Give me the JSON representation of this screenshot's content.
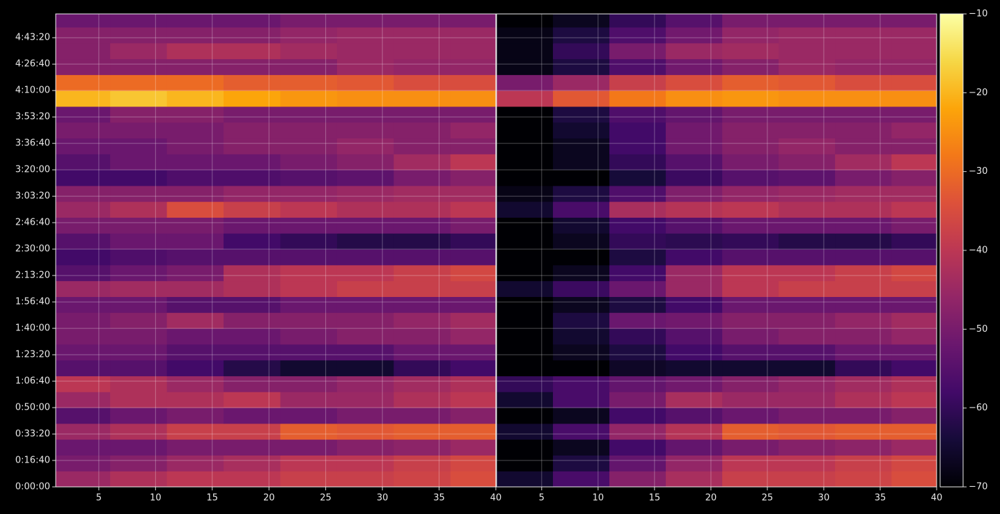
{
  "chart_data": [
    {
      "type": "heatmap",
      "colormap": "inferno",
      "grid": true,
      "xbins": [
        1,
        6,
        11,
        16,
        21,
        26,
        31,
        36,
        40
      ],
      "ybins": [
        0,
        600,
        1200,
        1800,
        2400,
        3000,
        3600,
        4200,
        4800,
        5400,
        6000,
        6600,
        7200,
        7800,
        8400,
        9000,
        9600,
        10200,
        10800,
        11400,
        12000,
        12600,
        13200,
        13800,
        14400,
        15000,
        15600,
        16200,
        16800,
        17400,
        18000
      ],
      "xlim": [
        1.2,
        40
      ],
      "ylim": [
        0,
        17900
      ],
      "xticks": [
        5,
        10,
        15,
        20,
        25,
        30,
        35,
        40
      ],
      "yticks": [
        {
          "value": 0,
          "label": "0:00:00"
        },
        {
          "value": 1000,
          "label": "0:16:40"
        },
        {
          "value": 2000,
          "label": "0:33:20"
        },
        {
          "value": 3000,
          "label": "0:50:00"
        },
        {
          "value": 4000,
          "label": "1:06:40"
        },
        {
          "value": 5000,
          "label": "1:23:20"
        },
        {
          "value": 6000,
          "label": "1:40:00"
        },
        {
          "value": 7000,
          "label": "1:56:40"
        },
        {
          "value": 8000,
          "label": "2:13:20"
        },
        {
          "value": 9000,
          "label": "2:30:00"
        },
        {
          "value": 10000,
          "label": "2:46:40"
        },
        {
          "value": 11000,
          "label": "3:03:20"
        },
        {
          "value": 12000,
          "label": "3:20:00"
        },
        {
          "value": 13000,
          "label": "3:36:40"
        },
        {
          "value": 14000,
          "label": "3:53:20"
        },
        {
          "value": 15000,
          "label": "4:10:00"
        },
        {
          "value": 16000,
          "label": "4:26:40"
        },
        {
          "value": 17000,
          "label": "4:43:20"
        }
      ],
      "zlim": [
        -70,
        -10
      ],
      "zticks": [
        {
          "value": -70,
          "label": "−70"
        },
        {
          "value": -60,
          "label": "−60"
        },
        {
          "value": -50,
          "label": "−50"
        },
        {
          "value": -40,
          "label": "−40"
        },
        {
          "value": -30,
          "label": "−30"
        },
        {
          "value": -20,
          "label": "−20"
        },
        {
          "value": -10,
          "label": "−10"
        }
      ],
      "values": [
        [
          -45,
          -42,
          -40,
          -40,
          -38,
          -38,
          -37,
          -35
        ],
        [
          -50,
          -48,
          -45,
          -43,
          -40,
          -40,
          -38,
          -36
        ],
        [
          -52,
          -52,
          -50,
          -50,
          -50,
          -48,
          -47,
          -45
        ],
        [
          -45,
          -42,
          -38,
          -38,
          -32,
          -33,
          -32,
          -32
        ],
        [
          -55,
          -52,
          -50,
          -52,
          -52,
          -50,
          -50,
          -48
        ],
        [
          -45,
          -42,
          -42,
          -40,
          -45,
          -45,
          -42,
          -40
        ],
        [
          -40,
          -42,
          -45,
          -48,
          -48,
          -46,
          -44,
          -42
        ],
        [
          -55,
          -55,
          -58,
          -62,
          -65,
          -65,
          -60,
          -58
        ],
        [
          -52,
          -52,
          -55,
          -55,
          -55,
          -55,
          -52,
          -52
        ],
        [
          -50,
          -50,
          -52,
          -52,
          -50,
          -48,
          -48,
          -46
        ],
        [
          -50,
          -48,
          -44,
          -48,
          -48,
          -48,
          -46,
          -44
        ],
        [
          -52,
          -52,
          -55,
          -55,
          -52,
          -52,
          -52,
          -52
        ],
        [
          -45,
          -44,
          -44,
          -42,
          -40,
          -38,
          -38,
          -38
        ],
        [
          -55,
          -52,
          -50,
          -42,
          -40,
          -40,
          -38,
          -36
        ],
        [
          -58,
          -56,
          -55,
          -55,
          -55,
          -55,
          -55,
          -55
        ],
        [
          -55,
          -52,
          -52,
          -58,
          -60,
          -62,
          -62,
          -60
        ],
        [
          -50,
          -50,
          -50,
          -52,
          -52,
          -52,
          -52,
          -50
        ],
        [
          -45,
          -42,
          -35,
          -38,
          -40,
          -42,
          -42,
          -40
        ],
        [
          -48,
          -48,
          -48,
          -46,
          -46,
          -45,
          -44,
          -44
        ],
        [
          -58,
          -58,
          -56,
          -56,
          -55,
          -54,
          -50,
          -48
        ],
        [
          -55,
          -52,
          -52,
          -52,
          -50,
          -48,
          -44,
          -40
        ],
        [
          -52,
          -52,
          -50,
          -48,
          -48,
          -46,
          -48,
          -48
        ],
        [
          -50,
          -50,
          -50,
          -48,
          -48,
          -48,
          -48,
          -46
        ],
        [
          -52,
          -48,
          -48,
          -50,
          -50,
          -50,
          -50,
          -50
        ],
        [
          -20,
          -18,
          -20,
          -22,
          -24,
          -25,
          -25,
          -25
        ],
        [
          -30,
          -30,
          -30,
          -32,
          -32,
          -33,
          -35,
          -35
        ],
        [
          -48,
          -48,
          -48,
          -48,
          -48,
          -45,
          -46,
          -46
        ],
        [
          -48,
          -45,
          -42,
          -42,
          -44,
          -45,
          -45,
          -45
        ],
        [
          -48,
          -48,
          -48,
          -48,
          -46,
          -45,
          -45,
          -45
        ],
        [
          -52,
          -52,
          -52,
          -52,
          -50,
          -50,
          -50,
          -50
        ]
      ]
    },
    {
      "type": "heatmap",
      "colormap": "inferno",
      "grid": true,
      "xbins": [
        1,
        6,
        11,
        16,
        21,
        26,
        31,
        36,
        40
      ],
      "ybins": [
        0,
        600,
        1200,
        1800,
        2400,
        3000,
        3600,
        4200,
        4800,
        5400,
        6000,
        6600,
        7200,
        7800,
        8400,
        9000,
        9600,
        10200,
        10800,
        11400,
        12000,
        12600,
        13200,
        13800,
        14400,
        15000,
        15600,
        16200,
        16800,
        17400,
        18000
      ],
      "xlim": [
        1,
        40
      ],
      "ylim": [
        0,
        17900
      ],
      "zlim": [
        -70,
        -10
      ],
      "xticks": [
        5,
        10,
        15,
        20,
        25,
        30,
        35,
        40
      ],
      "values": [
        [
          -65,
          -57,
          -48,
          -43,
          -38,
          -38,
          -37,
          -35
        ],
        [
          -70,
          -63,
          -53,
          -46,
          -40,
          -40,
          -38,
          -36
        ],
        [
          -70,
          -67,
          -58,
          -53,
          -50,
          -48,
          -47,
          -45
        ],
        [
          -65,
          -57,
          -46,
          -41,
          -32,
          -33,
          -32,
          -32
        ],
        [
          -70,
          -67,
          -58,
          -55,
          -52,
          -50,
          -50,
          -48
        ],
        [
          -65,
          -57,
          -50,
          -43,
          -45,
          -45,
          -42,
          -40
        ],
        [
          -60,
          -57,
          -53,
          -51,
          -48,
          -46,
          -44,
          -42
        ],
        [
          -70,
          -70,
          -66,
          -65,
          -65,
          -65,
          -60,
          -58
        ],
        [
          -70,
          -67,
          -63,
          -58,
          -55,
          -55,
          -52,
          -52
        ],
        [
          -70,
          -65,
          -60,
          -55,
          -50,
          -48,
          -48,
          -46
        ],
        [
          -70,
          -63,
          -52,
          -51,
          -48,
          -48,
          -46,
          -44
        ],
        [
          -70,
          -67,
          -63,
          -58,
          -52,
          -52,
          -52,
          -52
        ],
        [
          -65,
          -59,
          -52,
          -45,
          -40,
          -38,
          -38,
          -38
        ],
        [
          -70,
          -67,
          -58,
          -45,
          -40,
          -40,
          -38,
          -36
        ],
        [
          -70,
          -70,
          -63,
          -58,
          -55,
          -55,
          -55,
          -55
        ],
        [
          -70,
          -67,
          -60,
          -61,
          -60,
          -62,
          -62,
          -60
        ],
        [
          -70,
          -65,
          -58,
          -55,
          -52,
          -52,
          -52,
          -50
        ],
        [
          -65,
          -57,
          -43,
          -41,
          -40,
          -42,
          -42,
          -40
        ],
        [
          -68,
          -63,
          -56,
          -49,
          -46,
          -45,
          -44,
          -44
        ],
        [
          -70,
          -70,
          -64,
          -59,
          -55,
          -54,
          -50,
          -48
        ],
        [
          -70,
          -67,
          -60,
          -55,
          -50,
          -48,
          -44,
          -40
        ],
        [
          -70,
          -67,
          -58,
          -51,
          -48,
          -46,
          -48,
          -48
        ],
        [
          -70,
          -65,
          -58,
          -51,
          -48,
          -48,
          -48,
          -46
        ],
        [
          -70,
          -63,
          -56,
          -53,
          -50,
          -50,
          -50,
          -50
        ],
        [
          -40,
          -33,
          -28,
          -25,
          -24,
          -25,
          -25,
          -25
        ],
        [
          -50,
          -45,
          -38,
          -35,
          -32,
          -33,
          -35,
          -35
        ],
        [
          -68,
          -63,
          -56,
          -51,
          -48,
          -45,
          -46,
          -46
        ],
        [
          -68,
          -60,
          -50,
          -45,
          -44,
          -45,
          -45,
          -45
        ],
        [
          -68,
          -63,
          -56,
          -51,
          -46,
          -45,
          -45,
          -45
        ],
        [
          -70,
          -67,
          -60,
          -55,
          -50,
          -50,
          -50,
          -50
        ]
      ]
    }
  ]
}
